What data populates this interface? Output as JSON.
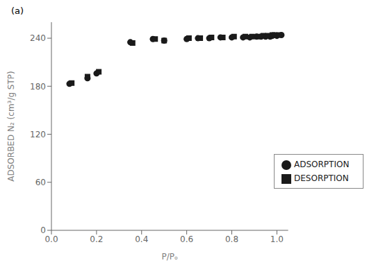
{
  "chart_data": {
    "type": "scatter",
    "xlabel": "P/Pₒ",
    "ylabel": "ADSORBED N₂ (cm³/g STP)",
    "annotations": [
      "(a)"
    ],
    "series": [
      {
        "name": "ADSORPTION",
        "color": "#1a1a1a",
        "marker": "circle",
        "x": [
          0.08,
          0.16,
          0.2,
          0.35,
          0.45,
          0.5,
          0.6,
          0.65,
          0.7,
          0.75,
          0.8,
          0.85,
          0.88,
          0.91,
          0.93,
          0.95,
          0.97,
          0.98,
          1.0,
          1.02
        ],
        "values": [
          183,
          190,
          196,
          235,
          239,
          237,
          239,
          240,
          240,
          241,
          241,
          241,
          241,
          242,
          242,
          242,
          242,
          243,
          243,
          244
        ]
      },
      {
        "name": "DESORPTION",
        "color": "#1a1a1a",
        "marker": "square",
        "x": [
          0.09,
          0.16,
          0.21,
          0.36,
          0.46,
          0.5,
          0.61,
          0.66,
          0.71,
          0.76,
          0.81,
          0.86,
          0.89,
          0.92,
          0.94,
          0.96,
          0.98,
          0.99,
          1.01
        ],
        "values": [
          184,
          192,
          198,
          234,
          239,
          237,
          240,
          240,
          241,
          241,
          242,
          242,
          242,
          242,
          243,
          243,
          244,
          244,
          244
        ]
      }
    ],
    "xlim": [
      0,
      1.05
    ],
    "ylim": [
      0,
      260
    ],
    "xticks": [
      {
        "value": 0,
        "label": "0.0"
      },
      0.2,
      0.4,
      0.6,
      0.8,
      {
        "value": 1.0,
        "label": "1.0"
      }
    ],
    "yticks": [
      0,
      60,
      120,
      180,
      240
    ],
    "grid": false,
    "legend": "lower right"
  }
}
